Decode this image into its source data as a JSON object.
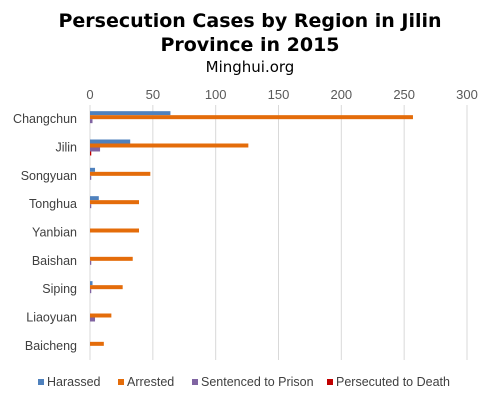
{
  "title_line1": "Persecution Cases by Region in Jilin",
  "title_line2": "Province in 2015",
  "subtitle": "Minghui.org",
  "chart_data": {
    "type": "bar",
    "orientation": "horizontal",
    "title": "Persecution Cases by Region in Jilin Province in 2015",
    "subtitle": "Minghui.org",
    "xlim": [
      0,
      300
    ],
    "xticks": [
      0,
      50,
      100,
      150,
      200,
      250,
      300
    ],
    "x_axis_position": "top",
    "grid": "vertical",
    "legend_position": "bottom",
    "categories": [
      "Changchun",
      "Jilin",
      "Songyuan",
      "Tonghua",
      "Yanbian",
      "Baishan",
      "Siping",
      "Liaoyuan",
      "Baicheng"
    ],
    "series": [
      {
        "name": "Harassed",
        "color": "#4F81BD",
        "values": [
          64,
          32,
          4,
          7,
          0,
          0,
          2,
          0,
          0
        ]
      },
      {
        "name": "Arrested",
        "color": "#E46C0A",
        "values": [
          257,
          126,
          48,
          39,
          39,
          34,
          26,
          17,
          11
        ]
      },
      {
        "name": "Sentenced to Prison",
        "color": "#8064A2",
        "values": [
          2,
          8,
          1,
          1,
          0,
          1,
          1,
          4,
          0
        ]
      },
      {
        "name": "Persecuted to Death",
        "color": "#C00000",
        "values": [
          0,
          1,
          0,
          0,
          0,
          0,
          0,
          0,
          0
        ]
      }
    ]
  }
}
